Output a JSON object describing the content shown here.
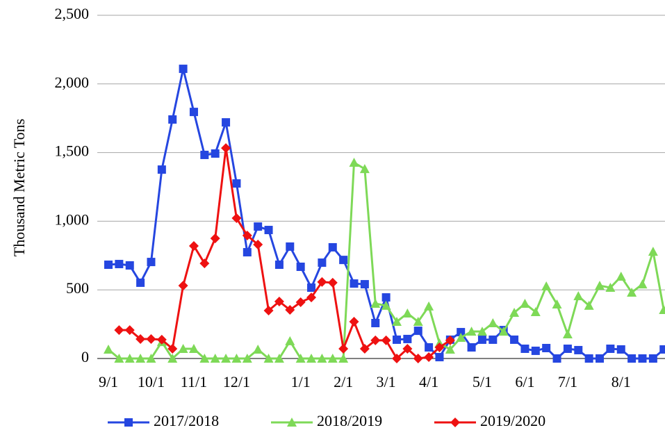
{
  "chart_data": {
    "type": "line",
    "y_label": "Thousand Metric Tons",
    "categories": [
      "9/1",
      null,
      null,
      null,
      "10/1",
      null,
      null,
      null,
      "11/1",
      null,
      null,
      null,
      "12/1",
      null,
      null,
      null,
      null,
      null,
      "1/1",
      null,
      null,
      null,
      "2/1",
      null,
      null,
      null,
      "3/1",
      null,
      null,
      null,
      "4/1",
      null,
      null,
      null,
      null,
      "5/1",
      null,
      null,
      null,
      "6/1",
      null,
      null,
      null,
      "7/1",
      null,
      null,
      null,
      null,
      "8/1",
      null,
      null,
      null,
      null
    ],
    "series": [
      {
        "name": "2017/2018",
        "color": "#2546e0",
        "marker": "square",
        "values": [
          683,
          688,
          678,
          552,
          703,
          1376,
          1741,
          2110,
          1796,
          1483,
          1493,
          1720,
          1275,
          774,
          961,
          936,
          683,
          815,
          668,
          516,
          698,
          810,
          718,
          546,
          541,
          258,
          445,
          137,
          142,
          202,
          81,
          10,
          137,
          192,
          81,
          137,
          137,
          207,
          137,
          71,
          56,
          76,
          0,
          71,
          61,
          0,
          0,
          71,
          66,
          0,
          0,
          0,
          66
        ]
      },
      {
        "name": "2018/2019",
        "color": "#7ed957",
        "marker": "triangle",
        "values": [
          66,
          0,
          0,
          0,
          0,
          121,
          0,
          71,
          71,
          0,
          0,
          0,
          0,
          0,
          66,
          0,
          0,
          127,
          0,
          0,
          0,
          0,
          0,
          1427,
          1381,
          400,
          385,
          268,
          329,
          268,
          380,
          111,
          66,
          152,
          197,
          197,
          258,
          197,
          334,
          400,
          339,
          526,
          395,
          177,
          455,
          385,
          531,
          516,
          597,
          481,
          541,
          779,
          354
        ]
      },
      {
        "name": "2019/2020",
        "color": "#ee1111",
        "marker": "diamond",
        "values": [
          null,
          207,
          207,
          142,
          142,
          137,
          71,
          531,
          820,
          693,
          875,
          1533,
          1022,
          896,
          830,
          349,
          415,
          354,
          410,
          445,
          557,
          552,
          71,
          268,
          71,
          132,
          132,
          0,
          71,
          0,
          10,
          81,
          132,
          null,
          null,
          null,
          null,
          null,
          null,
          null,
          null,
          null,
          null,
          null,
          null,
          null,
          null,
          null,
          null,
          null,
          null,
          null,
          null
        ]
      }
    ],
    "ylim": [
      0,
      2500
    ],
    "yticks": [
      0,
      500,
      {
        "value": 1000,
        "label": "1,000"
      },
      {
        "value": 1500,
        "label": "1,500"
      },
      {
        "value": 2000,
        "label": "2,000"
      },
      {
        "value": 2500,
        "label": "2,500"
      }
    ],
    "grid": true,
    "legend": "bottom"
  }
}
